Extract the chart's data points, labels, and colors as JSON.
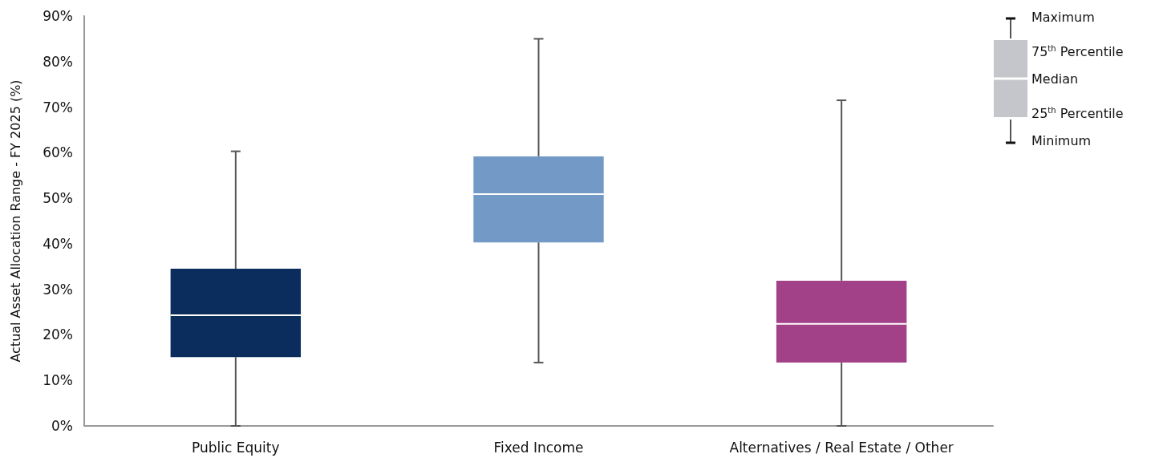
{
  "chart_data": {
    "type": "box",
    "ylabel": "Actual Asset Allocation Range - FY 2025 (%)",
    "categories": [
      "Public Equity",
      "Fixed Income",
      "Alternatives / Real Estate / Other"
    ],
    "colors": [
      "#0b2d5e",
      "#7399c6",
      "#a34188"
    ],
    "boxes": [
      {
        "low": 0,
        "q1": 15.1,
        "median": 24.3,
        "q3": 34.5,
        "high": 60.3
      },
      {
        "low": 13.9,
        "q1": 40.3,
        "median": 50.9,
        "q3": 59.2,
        "high": 85
      },
      {
        "low": 0,
        "q1": 13.9,
        "median": 22.4,
        "q3": 31.9,
        "high": 71.5
      }
    ],
    "ylim": [
      0,
      90
    ],
    "yticks": [
      {
        "value": 0,
        "label": "0%"
      },
      {
        "value": 10,
        "label": "10%"
      },
      {
        "value": 20,
        "label": "20%"
      },
      {
        "value": 30,
        "label": "30%"
      },
      {
        "value": 40,
        "label": "40%"
      },
      {
        "value": 50,
        "label": "50%"
      },
      {
        "value": 60,
        "label": "60%"
      },
      {
        "value": 70,
        "label": "70%"
      },
      {
        "value": 80,
        "label": "80%"
      },
      {
        "value": 90,
        "label": "90%"
      }
    ],
    "grid": false,
    "annotations": [
      "Maximum",
      "75$^{th}$ Percentile",
      "Median",
      "25$^{th}$ Percentile",
      "Minimum"
    ]
  }
}
